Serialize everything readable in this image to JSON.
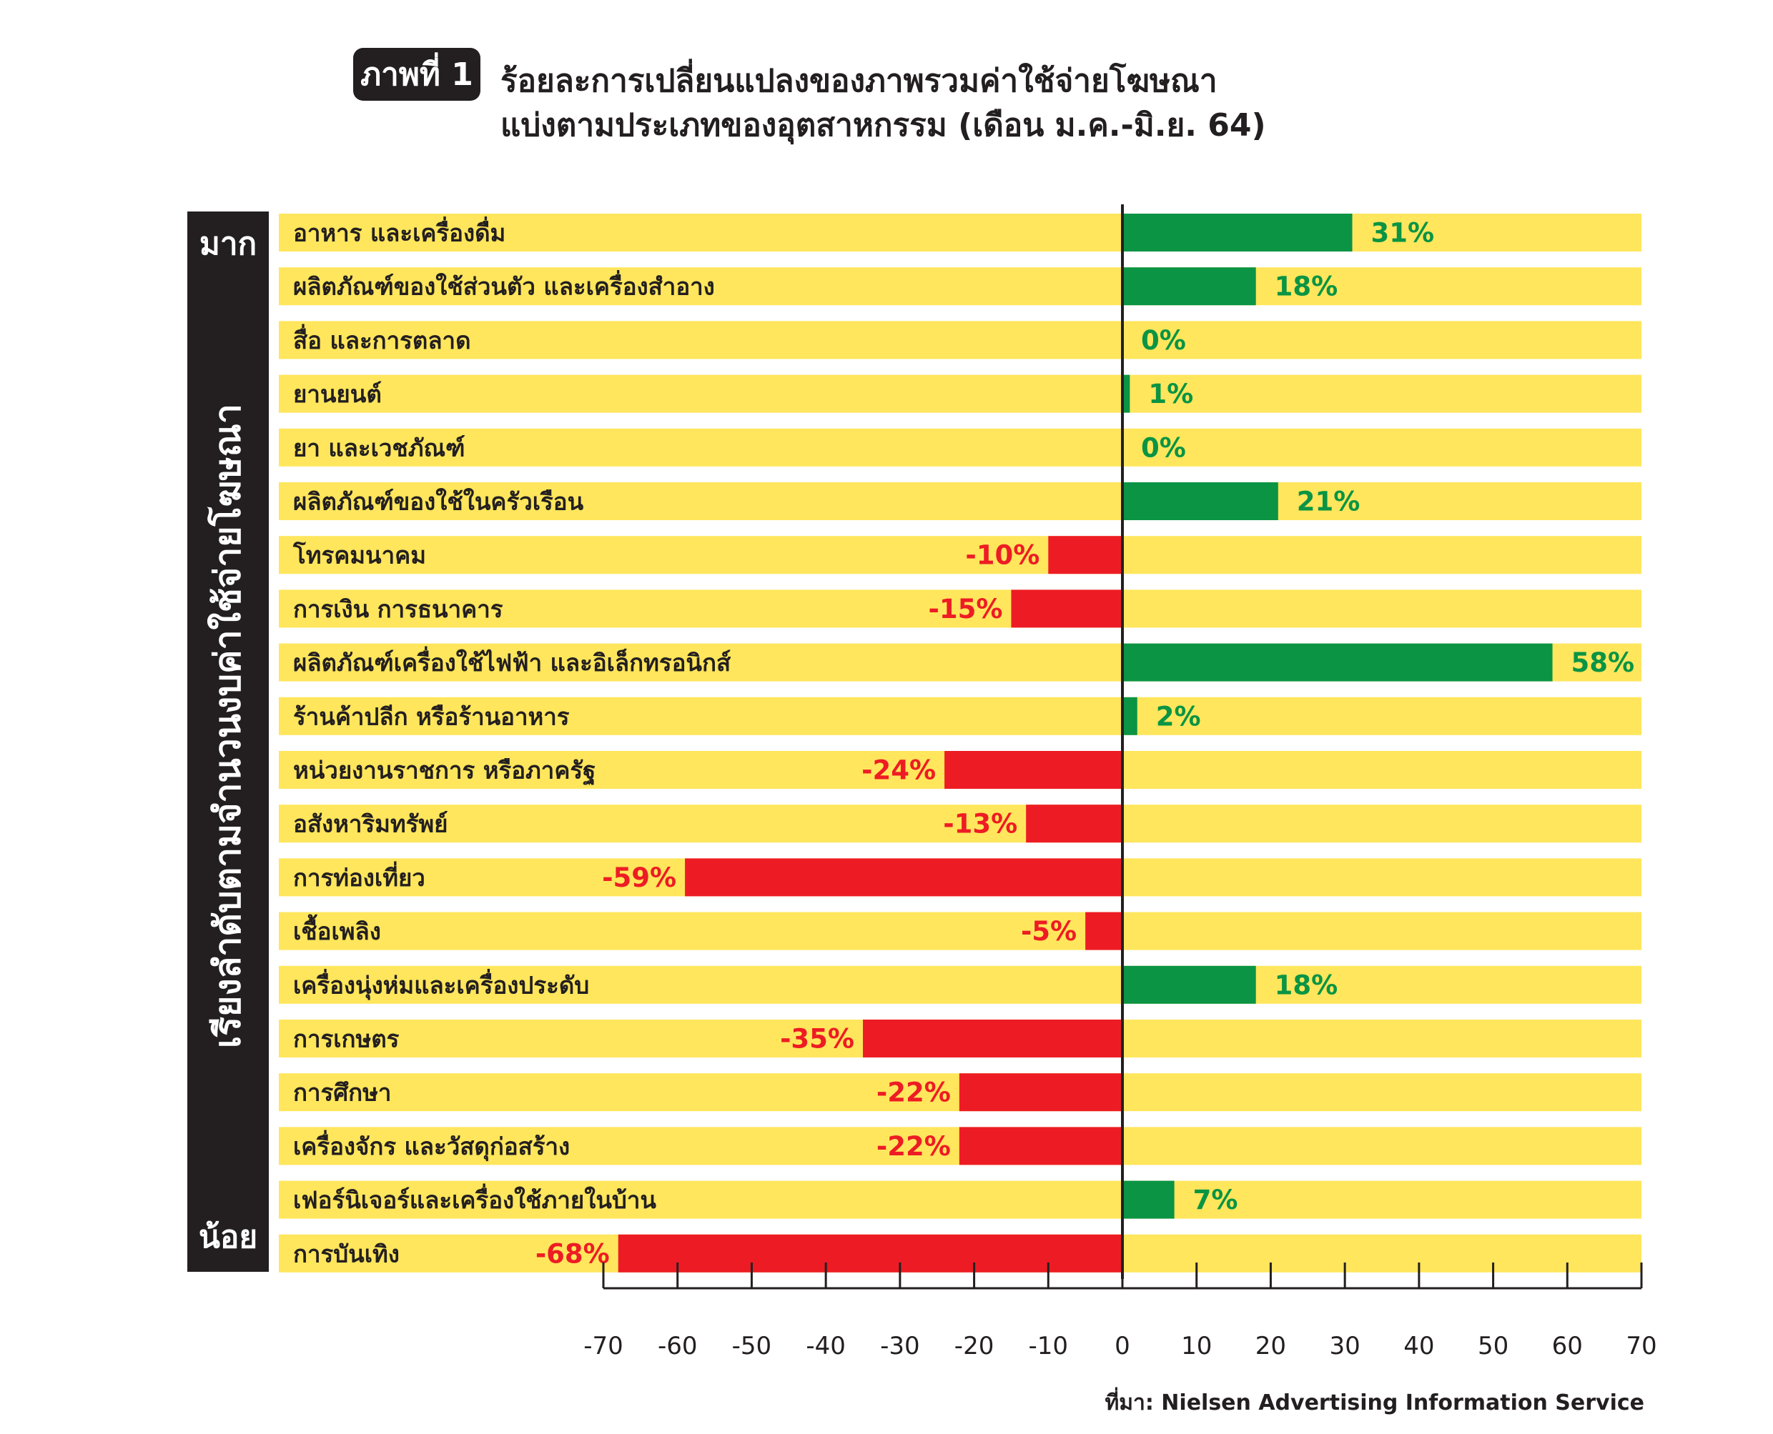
{
  "title": {
    "badge": "ภาพที่ 1",
    "line1": "ร้อยละการเปลี่ยนแปลงของภาพรวมค่าใช้จ่ายโฆษณา",
    "line2": "แบ่งตามประเภทของอุตสาหกรรม (เดือน ม.ค.-มิ.ย. 64)"
  },
  "sidebar": {
    "label": "เรียงลำดับตามจำนวนงบค่าใช้จ่ายโฆษณา",
    "top": "มาก",
    "bottom": "น้อย"
  },
  "source": "ที่มา: Nielsen Advertising Information Service",
  "colors": {
    "background_bar": "#FFE65C",
    "positive": "#0A9444",
    "negative": "#ED1C24",
    "text": "#231F20"
  },
  "chart_data": {
    "type": "bar",
    "orientation": "horizontal",
    "categories": [
      "อาหาร และเครื่องดื่ม",
      "ผลิตภัณฑ์ของใช้ส่วนตัว และเครื่องสำอาง",
      "สื่อ และการตลาด",
      "ยานยนต์",
      "ยา และเวชภัณฑ์",
      "ผลิตภัณฑ์ของใช้ในครัวเรือน",
      "โทรคมนาคม",
      "การเงิน การธนาคาร",
      "ผลิตภัณฑ์เครื่องใช้ไฟฟ้า และอิเล็กทรอนิกส์",
      "ร้านค้าปลีก หรือร้านอาหาร",
      "หน่วยงานราชการ หรือภาครัฐ",
      "อสังหาริมทรัพย์",
      "การท่องเที่ยว",
      "เชื้อเพลิง",
      "เครื่องนุ่งห่มและเครื่องประดับ",
      "การเกษตร",
      "การศึกษา",
      "เครื่องจักร และวัสดุก่อสร้าง",
      "เฟอร์นิเจอร์และเครื่องใช้ภายในบ้าน",
      "การบันเทิง"
    ],
    "values": [
      31,
      18,
      0,
      1,
      0,
      21,
      -10,
      -15,
      58,
      2,
      -24,
      -13,
      -59,
      -5,
      18,
      -35,
      -22,
      -22,
      7,
      -68
    ],
    "data_labels": [
      "31%",
      "18%",
      "0%",
      "1%",
      "0%",
      "21%",
      "-10%",
      "-15%",
      "58%",
      "2%",
      "-24%",
      "-13%",
      "-59%",
      "-5%",
      "18%",
      "-35%",
      "-22%",
      "-22%",
      "7%",
      "-68%"
    ],
    "xlim": [
      -70,
      70
    ],
    "xticks": [
      -70,
      -60,
      -50,
      -40,
      -30,
      -20,
      -10,
      0,
      10,
      20,
      30,
      40,
      50,
      60,
      70
    ],
    "grid": false
  }
}
